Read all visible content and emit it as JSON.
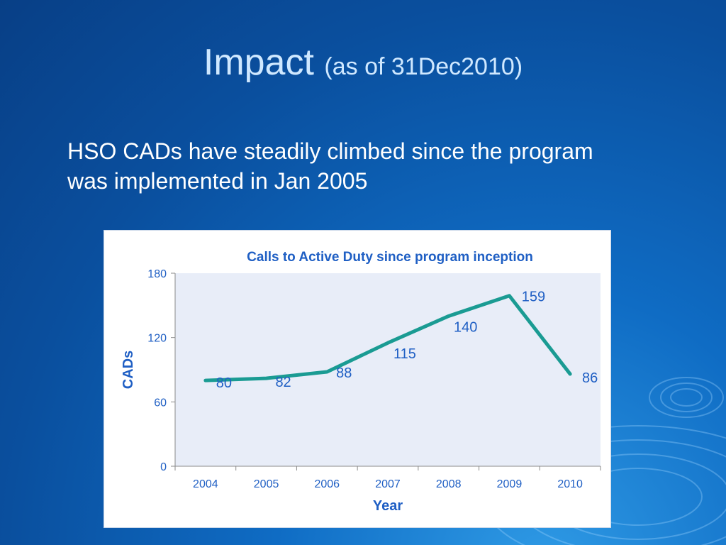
{
  "slide": {
    "title": "Impact",
    "title_sub": "(as of 31Dec2010)",
    "bullet": "HSO CADs have steadily climbed since the program was implemented in Jan 2005"
  },
  "chart_data": {
    "type": "line",
    "title": "Calls to Active Duty since program inception",
    "xlabel": "Year",
    "ylabel": "CADs",
    "categories": [
      "2004",
      "2005",
      "2006",
      "2007",
      "2008",
      "2009",
      "2010"
    ],
    "series": [
      {
        "values": [
          80,
          82,
          88,
          115,
          140,
          159,
          86
        ]
      }
    ],
    "ylim": [
      0,
      180
    ],
    "yticks": [
      0,
      60,
      120,
      180
    ],
    "data_labels": true,
    "grid": false,
    "legend": "none",
    "colors": {
      "line": "#1a9b93",
      "plot_bg": "#e8edf8",
      "text": "#1f5fc4"
    }
  }
}
